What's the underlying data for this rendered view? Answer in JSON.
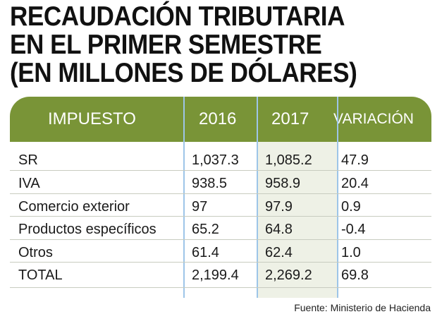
{
  "title_lines": [
    "RECAUDACIÓN TRIBUTARIA",
    "EN EL PRIMER SEMESTRE",
    "(EN MILLONES DE DÓLARES)"
  ],
  "chart_data": {
    "type": "table",
    "title": "RECAUDACIÓN TRIBUTARIA EN EL PRIMER SEMESTRE (EN MILLONES DE DÓLARES)",
    "columns": [
      "IMPUESTO",
      "2016",
      "2017",
      "VARIACIÓN"
    ],
    "rows": [
      [
        "SR",
        "1,037.3",
        "1,085.2",
        "47.9"
      ],
      [
        "IVA",
        "938.5",
        "958.9",
        "20.4"
      ],
      [
        "Comercio  exterior",
        "97",
        "97.9",
        "0.9"
      ],
      [
        "Productos específicos",
        "65.2",
        "64.8",
        "-0.4"
      ],
      [
        "Otros",
        "61.4",
        "62.4",
        "1.0"
      ],
      [
        "TOTAL",
        "2,199.4",
        "2,269.2",
        "69.8"
      ]
    ]
  },
  "source": "Fuente: Ministerio de Hacienda",
  "colors": {
    "header_bg": "#799437",
    "header_text": "#ffffff",
    "column_separator": "#9dc5e8",
    "highlight_2017": "#eef1e6"
  }
}
